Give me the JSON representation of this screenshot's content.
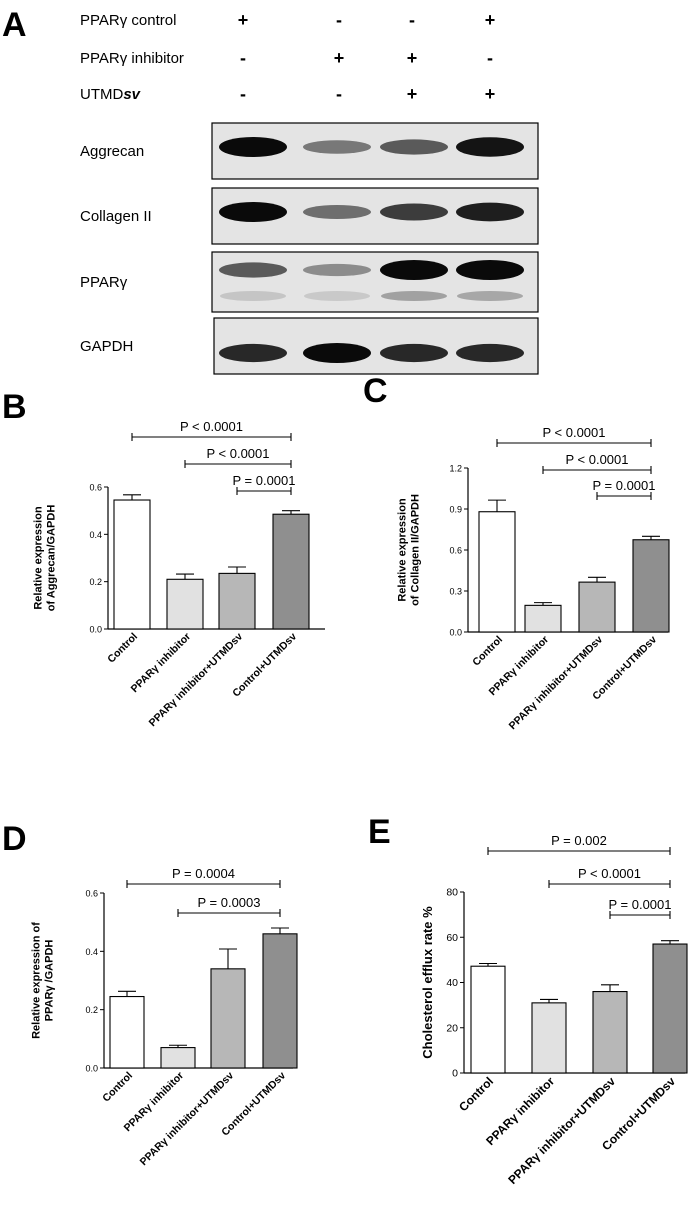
{
  "panel_a": {
    "letter": "A",
    "conditions": [
      {
        "label": "PPARγ control",
        "signs": [
          "+",
          "-",
          "-",
          "+"
        ]
      },
      {
        "label": "PPARγ inhibitor",
        "signs": [
          "-",
          "+",
          "+",
          "-"
        ]
      },
      {
        "label": "UTMDsv",
        "signs": [
          "-",
          "-",
          "+",
          "+"
        ]
      }
    ],
    "blots": [
      {
        "label": "Aggrecan",
        "intensity": [
          1.0,
          0.45,
          0.6,
          0.95
        ]
      },
      {
        "label": "Collagen II",
        "intensity": [
          1.0,
          0.5,
          0.75,
          0.9
        ]
      },
      {
        "label": "PPARγ",
        "intensity": [
          0.6,
          0.35,
          1.0,
          1.0
        ]
      },
      {
        "label": "GAPDH",
        "intensity": [
          0.85,
          1.0,
          0.85,
          0.85
        ]
      }
    ]
  },
  "chart_data": [
    {
      "panel": "B",
      "type": "bar",
      "categories": [
        "Control",
        "PPARγ  inhibitor",
        "PPARγ  inhibitor+UTMDsv",
        "Control+UTMDsv"
      ],
      "values": [
        0.545,
        0.21,
        0.235,
        0.485
      ],
      "errors": [
        0.022,
        0.022,
        0.027,
        0.015
      ],
      "bar_colors": [
        "#ffffff",
        "#e1e1e1",
        "#b7b7b7",
        "#8f8f8f"
      ],
      "ylabel_lines": [
        "Relative expression",
        "of Aggrecan/GAPDH"
      ],
      "ylim": [
        0,
        0.6
      ],
      "yticks": [
        "0.0",
        "0.2",
        "0.4",
        "0.6"
      ],
      "comparisons": [
        {
          "from": 0,
          "to": 3,
          "text": "P < 0.0001"
        },
        {
          "from": 1,
          "to": 3,
          "text": "P < 0.0001"
        },
        {
          "from": 2,
          "to": 3,
          "text": "P = 0.0001"
        }
      ]
    },
    {
      "panel": "C",
      "type": "bar",
      "categories": [
        "Control",
        "PPARγ  inhibitor",
        "PPARγ  inhibitor+UTMDsv",
        "Control+UTMDsv"
      ],
      "values": [
        0.88,
        0.195,
        0.365,
        0.675
      ],
      "errors": [
        0.085,
        0.02,
        0.035,
        0.025
      ],
      "bar_colors": [
        "#ffffff",
        "#e1e1e1",
        "#b7b7b7",
        "#8f8f8f"
      ],
      "ylabel_lines": [
        "Relative expression",
        "of Collagen II/GAPDH"
      ],
      "ylim": [
        0,
        1.2
      ],
      "yticks": [
        "0.0",
        "0.3",
        "0.6",
        "0.9",
        "1.2"
      ],
      "comparisons": [
        {
          "from": 0,
          "to": 3,
          "text": "P < 0.0001"
        },
        {
          "from": 1,
          "to": 3,
          "text": "P < 0.0001"
        },
        {
          "from": 2,
          "to": 3,
          "text": "P = 0.0001"
        }
      ]
    },
    {
      "panel": "D",
      "type": "bar",
      "categories": [
        "Control",
        "PPARγ  inhibitor",
        "PPARγ  inhibitor+UTMDsv",
        "Control+UTMDsv"
      ],
      "values": [
        0.245,
        0.07,
        0.34,
        0.46
      ],
      "errors": [
        0.018,
        0.008,
        0.068,
        0.02
      ],
      "bar_colors": [
        "#ffffff",
        "#e1e1e1",
        "#b7b7b7",
        "#8f8f8f"
      ],
      "ylabel_lines": [
        "Relative expression of",
        "PPARγ /GAPDH"
      ],
      "ylim": [
        0,
        0.6
      ],
      "yticks": [
        "0.0",
        "0.2",
        "0.4",
        "0.6"
      ],
      "comparisons": [
        {
          "from": 0,
          "to": 3,
          "text": "P = 0.0004"
        },
        {
          "from": 1,
          "to": 3,
          "text": "P = 0.0003"
        }
      ]
    },
    {
      "panel": "E",
      "type": "bar",
      "categories": [
        "Control",
        "PPARγ inhibitor",
        "PPARγ inhibitor+UTMDsv",
        "Control+UTMDsv"
      ],
      "values": [
        47.2,
        31.0,
        36.0,
        57.0
      ],
      "errors": [
        1.2,
        1.5,
        3.0,
        1.5
      ],
      "bar_colors": [
        "#ffffff",
        "#e1e1e1",
        "#b7b7b7",
        "#8f8f8f"
      ],
      "ylabel_lines": [
        "Cholesterol efflux rate %"
      ],
      "ylim": [
        0,
        80
      ],
      "yticks": [
        "0",
        "20",
        "40",
        "60",
        "80"
      ],
      "comparisons": [
        {
          "from": 0,
          "to": 3,
          "text": "P = 0.002"
        },
        {
          "from": 1,
          "to": 3,
          "text": "P < 0.0001"
        },
        {
          "from": 2,
          "to": 3,
          "text": "P = 0.0001"
        }
      ]
    }
  ]
}
